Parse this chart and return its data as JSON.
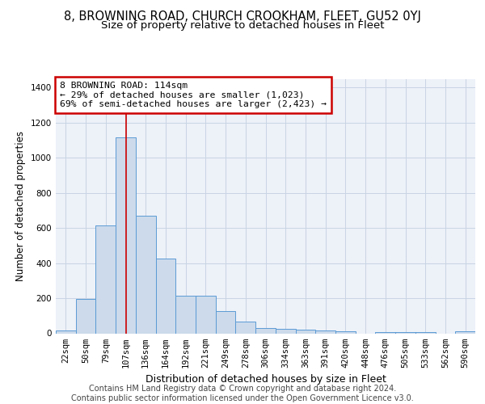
{
  "title_main": "8, BROWNING ROAD, CHURCH CROOKHAM, FLEET, GU52 0YJ",
  "title_sub": "Size of property relative to detached houses in Fleet",
  "xlabel": "Distribution of detached houses by size in Fleet",
  "ylabel": "Number of detached properties",
  "bar_labels": [
    "22sqm",
    "50sqm",
    "79sqm",
    "107sqm",
    "136sqm",
    "164sqm",
    "192sqm",
    "221sqm",
    "249sqm",
    "278sqm",
    "306sqm",
    "334sqm",
    "363sqm",
    "391sqm",
    "420sqm",
    "448sqm",
    "476sqm",
    "505sqm",
    "533sqm",
    "562sqm",
    "590sqm"
  ],
  "bar_values": [
    15,
    195,
    615,
    1115,
    670,
    425,
    215,
    215,
    125,
    65,
    30,
    25,
    20,
    15,
    10,
    0,
    5,
    5,
    5,
    0,
    10
  ],
  "bar_color": "#ccdaeb",
  "bar_edge_color": "#5b9bd5",
  "annotation_box_text": "8 BROWNING ROAD: 114sqm\n← 29% of detached houses are smaller (1,023)\n69% of semi-detached houses are larger (2,423) →",
  "annotation_box_color": "#ffffff",
  "annotation_box_edge_color": "#cc0000",
  "red_line_x": 3,
  "ylim": [
    0,
    1450
  ],
  "yticks": [
    0,
    200,
    400,
    600,
    800,
    1000,
    1200,
    1400
  ],
  "grid_color": "#c8d4e4",
  "background_color": "#edf1f8",
  "footer_text": "Contains HM Land Registry data © Crown copyright and database right 2024.\nContains public sector information licensed under the Open Government Licence v3.0.",
  "title_main_fontsize": 10.5,
  "title_sub_fontsize": 9.5,
  "xlabel_fontsize": 9,
  "ylabel_fontsize": 8.5,
  "tick_fontsize": 7.5,
  "footer_fontsize": 7
}
